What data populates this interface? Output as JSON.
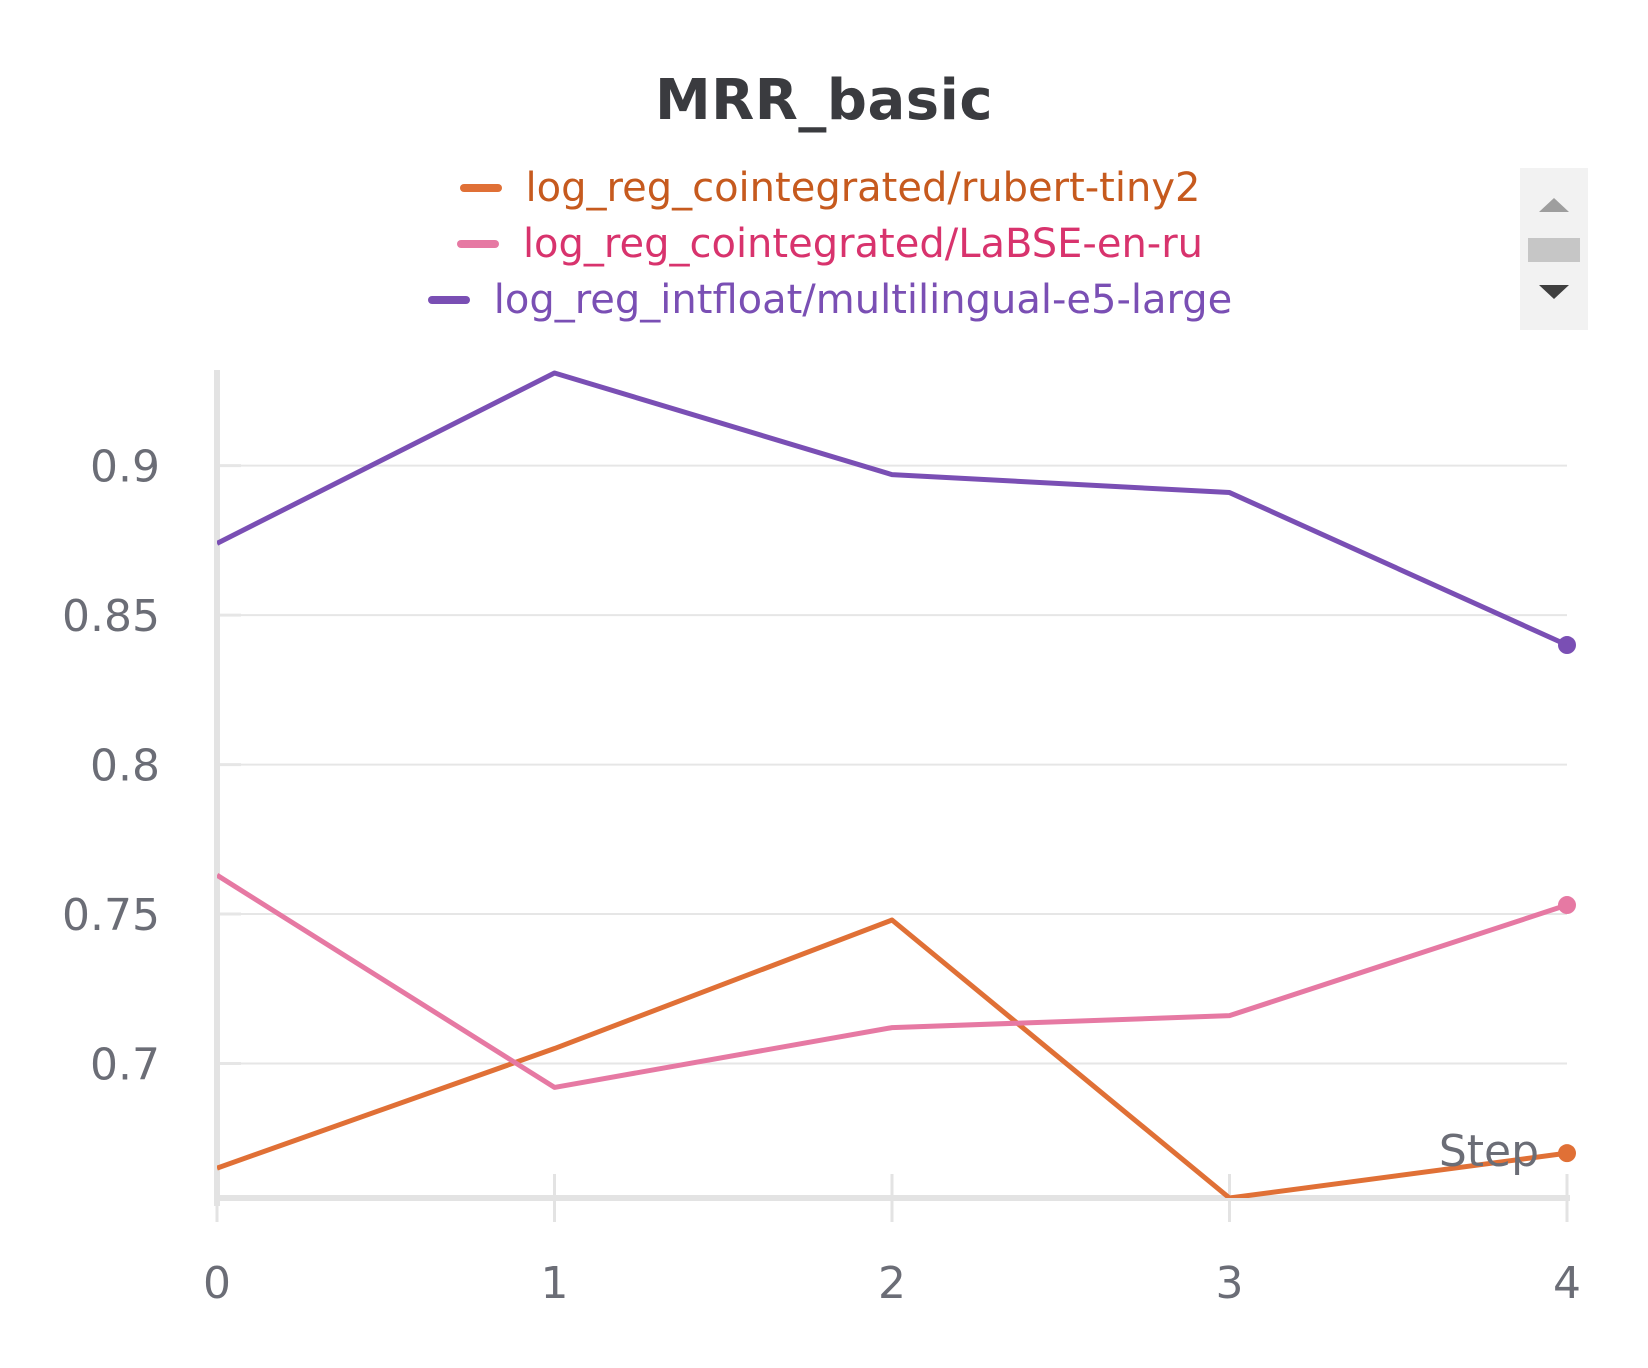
{
  "chart_data": {
    "type": "line",
    "title": "MRR_basic",
    "xlabel": "Step",
    "ylabel": "",
    "x": [
      0,
      1,
      2,
      3,
      4
    ],
    "xlim": [
      0,
      4
    ],
    "ylim": [
      0.655,
      0.932
    ],
    "x_ticks": [
      "0",
      "1",
      "2",
      "3",
      "4"
    ],
    "y_ticks": [
      0.7,
      0.75,
      0.8,
      0.85,
      0.9
    ],
    "y_tick_labels": [
      "0.7",
      "0.75",
      "0.8",
      "0.85",
      "0.9"
    ],
    "grid": "horizontal",
    "legend_position": "top",
    "series": [
      {
        "name": "log_reg_cointegrated/rubert-tiny2",
        "color": "#e07036",
        "label_color": "#c65a1e",
        "values": [
          0.665,
          0.705,
          0.748,
          0.655,
          0.67
        ]
      },
      {
        "name": "log_reg_cointegrated/LaBSE-en-ru",
        "color": "#e679a3",
        "label_color": "#d8336d",
        "values": [
          0.763,
          0.692,
          0.712,
          0.716,
          0.753
        ]
      },
      {
        "name": "log_reg_intfloat/multilingual-e5-large",
        "color": "#7a4fb4",
        "label_color": "#7a4fb4",
        "values": [
          0.874,
          0.931,
          0.897,
          0.891,
          0.84
        ]
      }
    ]
  },
  "legend": {
    "scroll_up_icon": "chevron-up-icon",
    "scroll_down_icon": "chevron-down-icon"
  }
}
